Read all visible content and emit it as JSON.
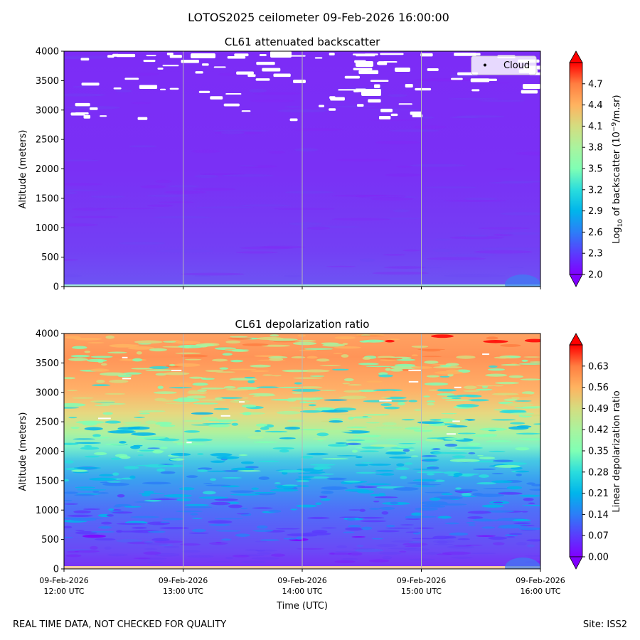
{
  "figure": {
    "title": "LOTOS2025 ceilometer 09-Feb-2026 16:00:00",
    "footer_left": "REAL TIME DATA, NOT CHECKED FOR QUALITY",
    "footer_right": "Site: ISS2",
    "xlabel": "Time (UTC)"
  },
  "time_ticks": [
    {
      "date": "09-Feb-2026",
      "time": "12:00 UTC"
    },
    {
      "date": "09-Feb-2026",
      "time": "13:00 UTC"
    },
    {
      "date": "09-Feb-2026",
      "time": "14:00 UTC"
    },
    {
      "date": "09-Feb-2026",
      "time": "15:00 UTC"
    },
    {
      "date": "09-Feb-2026",
      "time": "16:00 UTC"
    }
  ],
  "colors": {
    "background_low": "#7a2ef5",
    "cloud": "#ffffff",
    "surface_band": "#f0c8a0"
  },
  "chart_data": [
    {
      "type": "heatmap",
      "title": "CL61 attenuated backscatter",
      "xlabel": "",
      "ylabel": "Altitude (meters)",
      "x": [
        "12:00",
        "13:00",
        "14:00",
        "15:00",
        "16:00"
      ],
      "xlim_hours_utc": [
        12,
        16
      ],
      "ylim": [
        0,
        4000
      ],
      "y_ticks": [
        0,
        500,
        1000,
        1500,
        2000,
        2500,
        3000,
        3500,
        4000
      ],
      "colorbar": {
        "label_prefix": "Log",
        "label_sub": "10",
        "label_mid": " of backscatter (10",
        "label_sup": "−9",
        "label_suffix": "/m.sr)",
        "range": [
          2.0,
          5.0
        ],
        "ticks": [
          "2.0",
          "2.3",
          "2.6",
          "2.9",
          "3.2",
          "3.5",
          "3.8",
          "4.1",
          "4.4",
          "4.7"
        ],
        "extend": "both",
        "colormap": "rainbow"
      },
      "legend": {
        "label": "Cloud",
        "position": "top-right"
      },
      "description_values": {
        "dominant_level": 2.05,
        "cloud_layer_altitude_m": [
          3000,
          4000
        ]
      }
    },
    {
      "type": "heatmap",
      "title": "CL61 depolarization ratio",
      "xlabel": "Time (UTC)",
      "ylabel": "Altitude (meters)",
      "x": [
        "12:00",
        "13:00",
        "14:00",
        "15:00",
        "16:00"
      ],
      "xlim_hours_utc": [
        12,
        16
      ],
      "ylim": [
        0,
        4000
      ],
      "y_ticks": [
        0,
        500,
        1000,
        1500,
        2000,
        2500,
        3000,
        3500,
        4000
      ],
      "colorbar": {
        "label": "Linear depolarization ratio",
        "range": [
          0.0,
          0.7
        ],
        "ticks": [
          "0.00",
          "0.07",
          "0.14",
          "0.21",
          "0.28",
          "0.35",
          "0.42",
          "0.49",
          "0.56",
          "0.63"
        ],
        "extend": "both",
        "colormap": "rainbow"
      },
      "profile": [
        {
          "altitude_m": 0,
          "ratio": 0.02
        },
        {
          "altitude_m": 500,
          "ratio": 0.03
        },
        {
          "altitude_m": 1000,
          "ratio": 0.08
        },
        {
          "altitude_m": 1500,
          "ratio": 0.15
        },
        {
          "altitude_m": 2000,
          "ratio": 0.25
        },
        {
          "altitude_m": 2500,
          "ratio": 0.38
        },
        {
          "altitude_m": 3000,
          "ratio": 0.5
        },
        {
          "altitude_m": 3500,
          "ratio": 0.55
        },
        {
          "altitude_m": 4000,
          "ratio": 0.58
        }
      ]
    }
  ]
}
